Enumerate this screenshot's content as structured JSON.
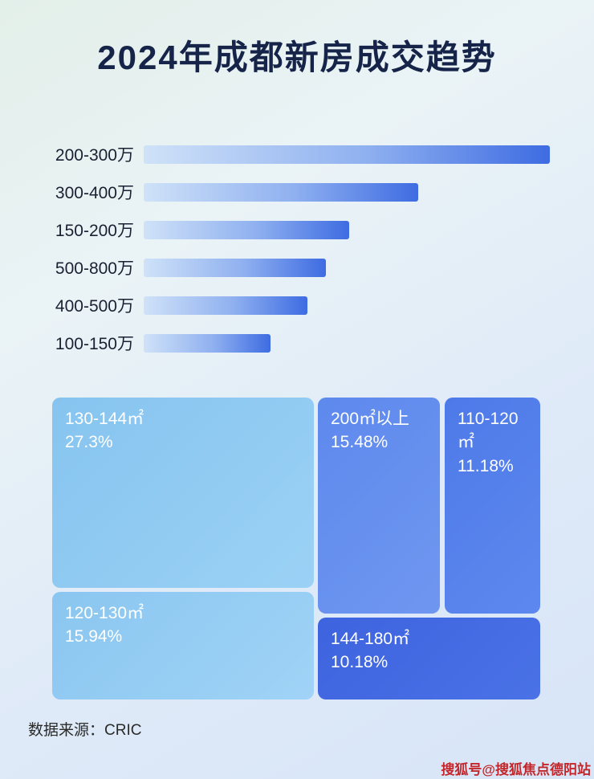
{
  "page": {
    "title": "2024年成都新房成交趋势",
    "source_label": "数据来源：CRIC",
    "watermark": "搜狐号@搜狐焦点德阳站"
  },
  "colors": {
    "title_text": "#152448",
    "bar_gradient_start": "#cfe2f8",
    "bar_gradient_end": "#3e6ce2",
    "treemap_light_blue": "#8fc9f1",
    "treemap_medium_blue": "#5a85ec",
    "treemap_dark_blue": "#3f66e0",
    "watermark_red": "#c0262b"
  },
  "chart_data": [
    {
      "type": "bar",
      "title": "2024年成都新房成交趋势",
      "orientation": "horizontal",
      "categories": [
        "200-300万",
        "300-400万",
        "150-200万",
        "500-800万",
        "400-500万",
        "100-150万"
      ],
      "values": [
        99,
        67,
        50,
        44.5,
        40,
        31
      ],
      "value_note": "no numeric axis or data labels shown; values estimated as % of track width relative to longest bar",
      "xlabel": "",
      "ylabel": "",
      "grid": false,
      "legend": false
    },
    {
      "type": "treemap",
      "items": [
        {
          "label": "130-144㎡",
          "value_pct": 27.3,
          "display": "27.3%"
        },
        {
          "label": "120-130㎡",
          "value_pct": 15.94,
          "display": "15.94%"
        },
        {
          "label": "200㎡以上",
          "value_pct": 15.48,
          "display": "15.48%"
        },
        {
          "label": "110-120㎡",
          "value_pct": 11.18,
          "display": "11.18%"
        },
        {
          "label": "144-180㎡",
          "value_pct": 10.18,
          "display": "10.18%"
        }
      ]
    }
  ]
}
